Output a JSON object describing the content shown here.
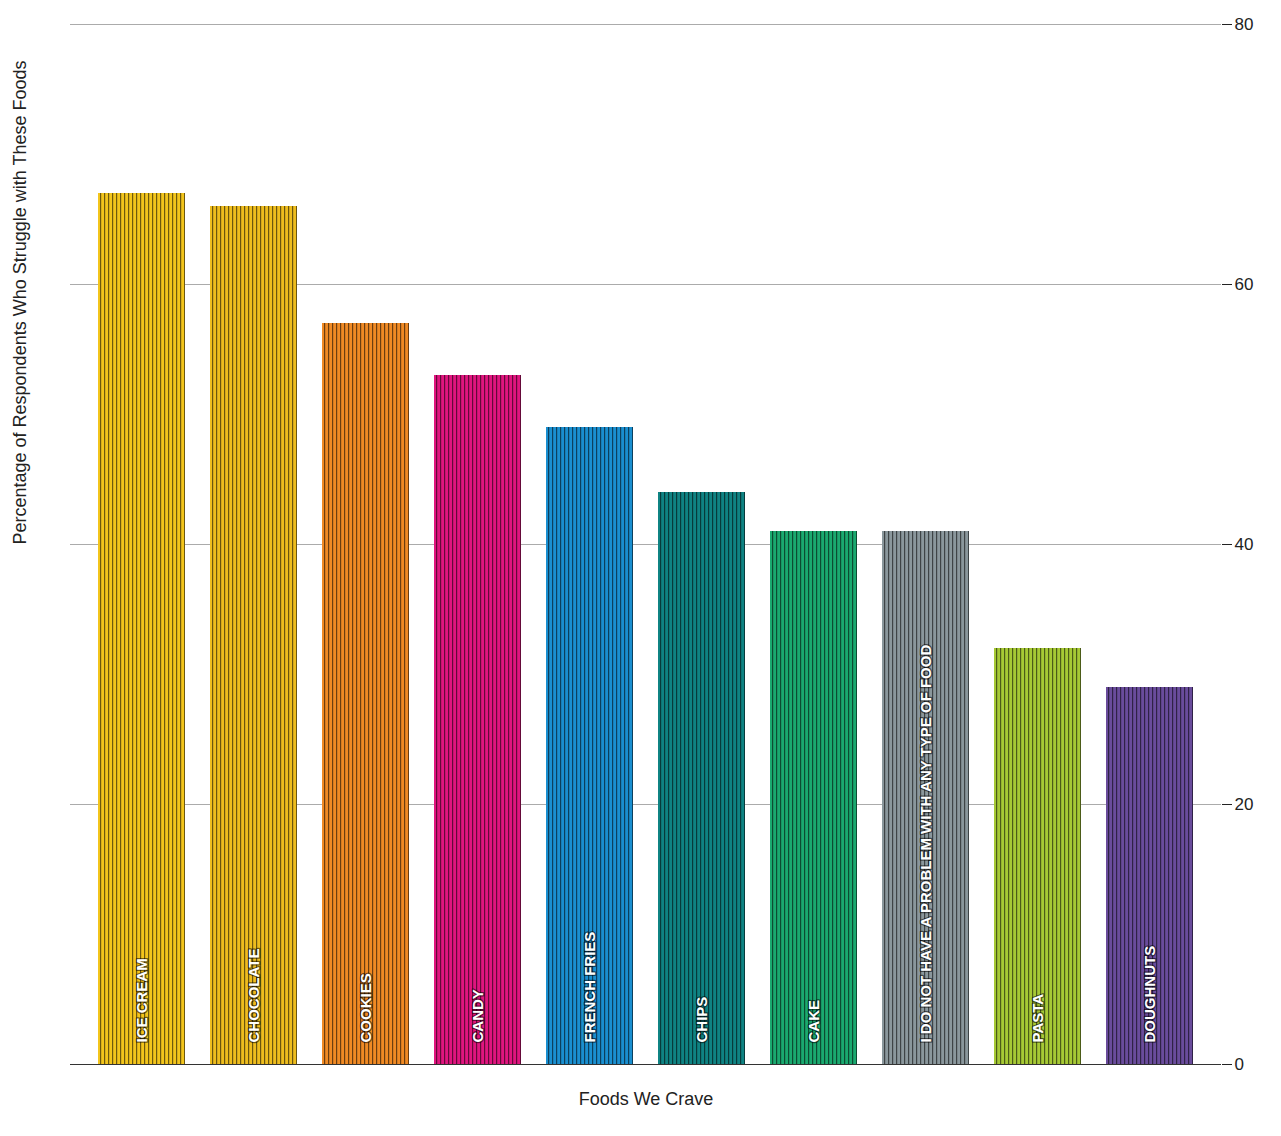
{
  "chart_data": {
    "type": "bar",
    "categories": [
      "ICE CREAM",
      "CHOCOLATE",
      "COOKIES",
      "CANDY",
      "FRENCH FRIES",
      "CHIPS",
      "CAKE",
      "I DO NOT HAVE A PROBLEM WITH ANY TYPE OF FOOD",
      "PASTA",
      "DOUGHNUTS"
    ],
    "values": [
      67,
      66,
      57,
      53,
      49,
      44,
      41,
      41,
      32,
      29
    ],
    "colors": [
      "#f3c51c",
      "#eebd1e",
      "#f08a24",
      "#e0157f",
      "#1a8fd0",
      "#0f8383",
      "#1aa96f",
      "#8a979c",
      "#a6c935",
      "#6a4c9c"
    ],
    "x_label": "Foods We Crave",
    "y_label": "Percentage of Respondents Who Struggle with These Foods",
    "ylim": [
      0,
      80
    ],
    "yticks": [
      0,
      20,
      40,
      60,
      80
    ],
    "grid": true
  }
}
